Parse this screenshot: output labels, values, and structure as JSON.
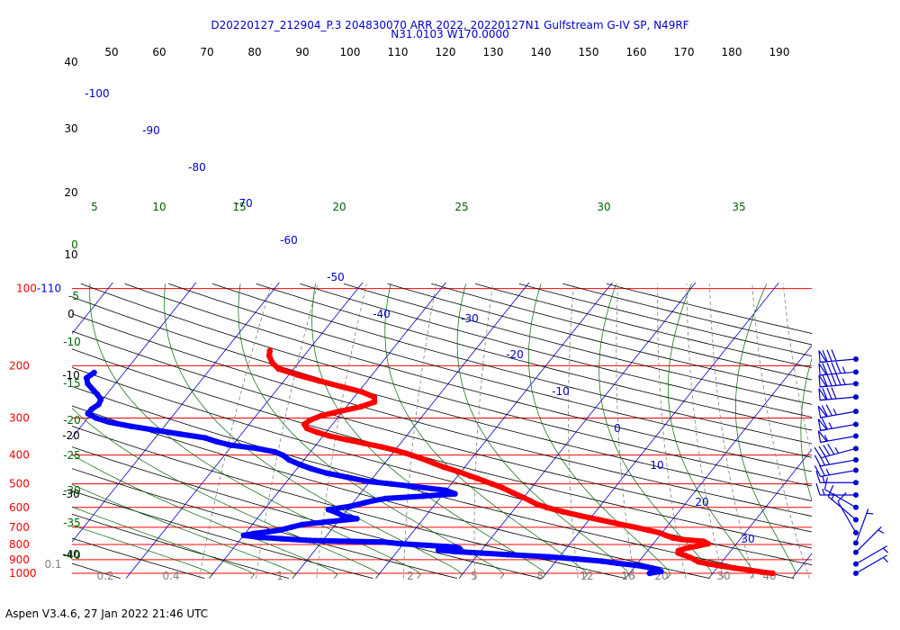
{
  "header": {
    "title_line1": "D20220127_212904_P.3 204830070 ARR 2022, 20220127N1 Gulfstream G-IV SP, N49RF",
    "title_line2": "N31.0103 W170.0000"
  },
  "footer": {
    "text": "Aspen V3.4.6, 27 Jan 2022  21:46 UTC"
  },
  "colors": {
    "isobar": "#ff0000",
    "isotherm": "#0000cc",
    "dry_adiabat": "#000000",
    "moist_adiabat": "#006400",
    "mixing_ratio": "#808080",
    "temperature": "#ff0000",
    "dewpoint": "#0000ff",
    "wind_barb": "#0000cc"
  },
  "chart_data": {
    "type": "skew-t",
    "pressure_labels": [
      "100-110",
      "200",
      "300",
      "400",
      "500",
      "600",
      "700",
      "800",
      "900",
      "1000"
    ],
    "isobars_hpa": [
      110,
      200,
      300,
      400,
      500,
      600,
      700,
      800,
      900,
      1000
    ],
    "isotherm_labels": [
      "-100",
      "-90",
      "-80",
      "-70",
      "-60",
      "-50",
      "-40",
      "-30",
      "-20",
      "-10",
      "0",
      "10",
      "20",
      "30"
    ],
    "top_scale_labels": [
      "50",
      "60",
      "70",
      "80",
      "90",
      "100",
      "110",
      "120",
      "130",
      "140",
      "150",
      "160",
      "170",
      "180",
      "190"
    ],
    "theta_labels": [
      "40",
      "30",
      "20",
      "10",
      "0",
      "-10",
      "-20",
      "-30",
      "-40"
    ],
    "moist_labels": [
      "5",
      "10",
      "15",
      "20",
      "25",
      "30",
      "35",
      "0",
      "-5",
      "-10",
      "-15",
      "-20",
      "-25",
      "-30",
      "-35",
      "-40"
    ],
    "mixing_ratio_labels": [
      "0.1",
      "0.2",
      "0.4",
      "1",
      "2",
      "5",
      "8",
      "12",
      "16",
      "20",
      "30",
      "40"
    ],
    "temperature_profile": [
      {
        "p": 1000,
        "t": 27.2
      },
      {
        "p": 990,
        "t": 25.8
      },
      {
        "p": 975,
        "t": 24.0
      },
      {
        "p": 960,
        "t": 22.1
      },
      {
        "p": 945,
        "t": 20.3
      },
      {
        "p": 930,
        "t": 18.6
      },
      {
        "p": 915,
        "t": 17.2
      },
      {
        "p": 900,
        "t": 16.5
      },
      {
        "p": 885,
        "t": 15.8
      },
      {
        "p": 870,
        "t": 14.9
      },
      {
        "p": 855,
        "t": 13.9
      },
      {
        "p": 840,
        "t": 13.7
      },
      {
        "p": 825,
        "t": 14.3
      },
      {
        "p": 810,
        "t": 15.5
      },
      {
        "p": 795,
        "t": 16.6
      },
      {
        "p": 780,
        "t": 15.8
      },
      {
        "p": 770,
        "t": 13.1
      },
      {
        "p": 760,
        "t": 11.8
      },
      {
        "p": 745,
        "t": 10.7
      },
      {
        "p": 730,
        "t": 9.7
      },
      {
        "p": 715,
        "t": 8.0
      },
      {
        "p": 700,
        "t": 6.3
      },
      {
        "p": 680,
        "t": 3.7
      },
      {
        "p": 660,
        "t": 1.2
      },
      {
        "p": 640,
        "t": -1.5
      },
      {
        "p": 620,
        "t": -4.0
      },
      {
        "p": 600,
        "t": -6.3
      },
      {
        "p": 585,
        "t": -7.8
      },
      {
        "p": 570,
        "t": -8.9
      },
      {
        "p": 555,
        "t": -10.1
      },
      {
        "p": 535,
        "t": -11.8
      },
      {
        "p": 515,
        "t": -13.5
      },
      {
        "p": 500,
        "t": -15.1
      },
      {
        "p": 490,
        "t": -16.2
      },
      {
        "p": 480,
        "t": -17.3
      },
      {
        "p": 470,
        "t": -18.5
      },
      {
        "p": 455,
        "t": -20.3
      },
      {
        "p": 440,
        "t": -22.4
      },
      {
        "p": 425,
        "t": -24.2
      },
      {
        "p": 410,
        "t": -26.1
      },
      {
        "p": 395,
        "t": -28.3
      },
      {
        "p": 385,
        "t": -30.0
      },
      {
        "p": 375,
        "t": -32.0
      },
      {
        "p": 365,
        "t": -34.4
      },
      {
        "p": 355,
        "t": -36.8
      },
      {
        "p": 345,
        "t": -39.2
      },
      {
        "p": 335,
        "t": -41.1
      },
      {
        "p": 325,
        "t": -42.7
      },
      {
        "p": 315,
        "t": -43.4
      },
      {
        "p": 305,
        "t": -43.1
      },
      {
        "p": 295,
        "t": -42.2
      },
      {
        "p": 285,
        "t": -40.4
      },
      {
        "p": 275,
        "t": -38.3
      },
      {
        "p": 265,
        "t": -37.1
      },
      {
        "p": 255,
        "t": -37.6
      },
      {
        "p": 245,
        "t": -39.6
      },
      {
        "p": 235,
        "t": -42.6
      },
      {
        "p": 225,
        "t": -45.8
      },
      {
        "p": 215,
        "t": -48.9
      },
      {
        "p": 205,
        "t": -51.8
      },
      {
        "p": 195,
        "t": -53.2
      },
      {
        "p": 185,
        "t": -54.2
      },
      {
        "p": 178,
        "t": -54.6
      }
    ],
    "dewpoint_profile": [
      {
        "p": 1000,
        "td": 12.4
      },
      {
        "p": 985,
        "td": 13.6
      },
      {
        "p": 970,
        "td": 13.0
      },
      {
        "p": 955,
        "td": 11.7
      },
      {
        "p": 940,
        "td": 10.0
      },
      {
        "p": 925,
        "td": 7.5
      },
      {
        "p": 910,
        "td": 5.5
      },
      {
        "p": 895,
        "td": 2.3
      },
      {
        "p": 880,
        "td": -1.2
      },
      {
        "p": 865,
        "td": -6.4
      },
      {
        "p": 855,
        "td": -9.8
      },
      {
        "p": 845,
        "td": -13.0
      },
      {
        "p": 835,
        "td": -15.2
      },
      {
        "p": 825,
        "td": -12.8
      },
      {
        "p": 815,
        "td": -13.5
      },
      {
        "p": 805,
        "td": -17.1
      },
      {
        "p": 795,
        "td": -20.3
      },
      {
        "p": 785,
        "td": -22.6
      },
      {
        "p": 775,
        "td": -31.5
      },
      {
        "p": 765,
        "td": -35.1
      },
      {
        "p": 755,
        "td": -38.3
      },
      {
        "p": 745,
        "td": -40.0
      },
      {
        "p": 735,
        "td": -39.0
      },
      {
        "p": 725,
        "td": -37.4
      },
      {
        "p": 715,
        "td": -36.1
      },
      {
        "p": 700,
        "td": -35.1
      },
      {
        "p": 685,
        "td": -34.0
      },
      {
        "p": 670,
        "td": -31.1
      },
      {
        "p": 655,
        "td": -28.0
      },
      {
        "p": 640,
        "td": -30.0
      },
      {
        "p": 625,
        "td": -31.0
      },
      {
        "p": 610,
        "td": -32.3
      },
      {
        "p": 595,
        "td": -30.0
      },
      {
        "p": 580,
        "td": -28.7
      },
      {
        "p": 570,
        "td": -27.8
      },
      {
        "p": 560,
        "td": -26.5
      },
      {
        "p": 550,
        "td": -22.2
      },
      {
        "p": 540,
        "td": -18.6
      },
      {
        "p": 525,
        "td": -20.1
      },
      {
        "p": 510,
        "td": -24.3
      },
      {
        "p": 500,
        "td": -27.2
      },
      {
        "p": 490,
        "td": -30.4
      },
      {
        "p": 475,
        "td": -33.1
      },
      {
        "p": 460,
        "td": -36.0
      },
      {
        "p": 445,
        "td": -38.2
      },
      {
        "p": 430,
        "td": -40.1
      },
      {
        "p": 415,
        "td": -41.8
      },
      {
        "p": 400,
        "td": -43.0
      },
      {
        "p": 390,
        "td": -44.3
      },
      {
        "p": 380,
        "td": -46.7
      },
      {
        "p": 370,
        "td": -50.3
      },
      {
        "p": 360,
        "td": -52.3
      },
      {
        "p": 350,
        "td": -54.0
      },
      {
        "p": 340,
        "td": -57.3
      },
      {
        "p": 330,
        "td": -60.6
      },
      {
        "p": 320,
        "td": -64.0
      },
      {
        "p": 310,
        "td": -67.0
      },
      {
        "p": 300,
        "td": -69.0
      },
      {
        "p": 290,
        "td": -70.4
      },
      {
        "p": 280,
        "td": -70.4
      },
      {
        "p": 270,
        "td": -70.0
      },
      {
        "p": 260,
        "td": -70.2
      },
      {
        "p": 250,
        "td": -71.1
      },
      {
        "p": 240,
        "td": -72.2
      },
      {
        "p": 230,
        "td": -73.3
      },
      {
        "p": 220,
        "td": -74.0
      },
      {
        "p": 211,
        "td": -73.6
      }
    ],
    "wind_profile_kt": [
      {
        "p": 190,
        "dir": 265,
        "spd": 80
      },
      {
        "p": 210,
        "dir": 265,
        "spd": 95
      },
      {
        "p": 230,
        "dir": 265,
        "spd": 95
      },
      {
        "p": 255,
        "dir": 265,
        "spd": 80
      },
      {
        "p": 285,
        "dir": 260,
        "spd": 75
      },
      {
        "p": 315,
        "dir": 260,
        "spd": 65
      },
      {
        "p": 345,
        "dir": 260,
        "spd": 55
      },
      {
        "p": 380,
        "dir": 255,
        "spd": 45
      },
      {
        "p": 415,
        "dir": 260,
        "spd": 30
      },
      {
        "p": 450,
        "dir": 260,
        "spd": 25
      },
      {
        "p": 495,
        "dir": 270,
        "spd": 15
      },
      {
        "p": 545,
        "dir": 270,
        "spd": 15
      },
      {
        "p": 600,
        "dir": 300,
        "spd": 10
      },
      {
        "p": 660,
        "dir": 310,
        "spd": 15
      },
      {
        "p": 730,
        "dir": 330,
        "spd": 10
      },
      {
        "p": 790,
        "dir": 20,
        "spd": 5
      },
      {
        "p": 850,
        "dir": 45,
        "spd": 5
      },
      {
        "p": 930,
        "dir": 60,
        "spd": 5
      },
      {
        "p": 1000,
        "dir": 60,
        "spd": 5
      }
    ]
  }
}
